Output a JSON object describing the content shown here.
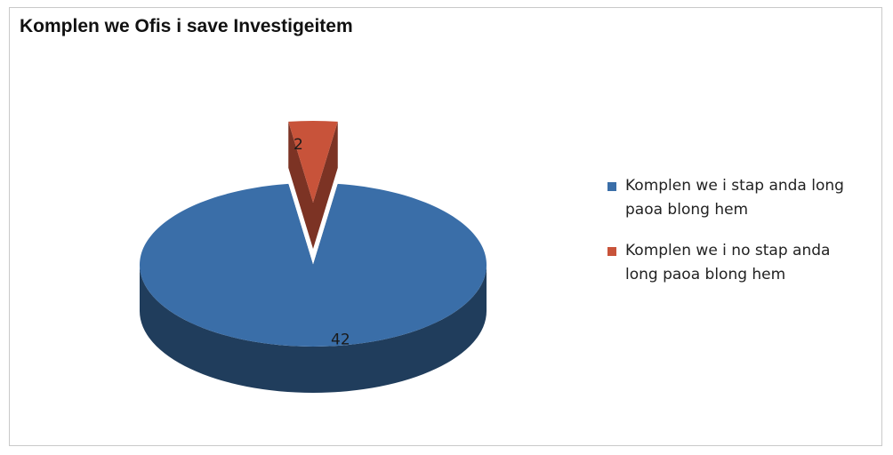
{
  "chart_data": {
    "type": "pie",
    "title": "Komplen we Ofis i save Investigeitem",
    "categories": [
      "Komplen we i stap anda long paoa blong hem",
      "Komplen we i no stap anda long paoa blong hem"
    ],
    "values": [
      42,
      2
    ],
    "data_labels": [
      "42",
      "2"
    ],
    "colors": [
      "#3a6ea8",
      "#c8533a"
    ],
    "style": "3d-exploded",
    "legend_position": "right"
  }
}
